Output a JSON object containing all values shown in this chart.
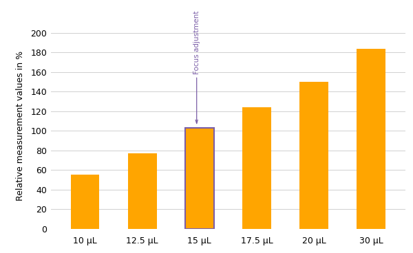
{
  "categories": [
    "10 μL",
    "12.5 μL",
    "15 μL",
    "17.5 μL",
    "20 μL",
    "30 μL"
  ],
  "values": [
    55,
    77,
    103,
    124,
    150,
    184
  ],
  "bar_color": "#FFA500",
  "highlight_index": 2,
  "highlight_color": "#7B5EA7",
  "annotation_text": "Focus adjustment",
  "annotation_color": "#7B5EA7",
  "ylabel": "Relative measurement values in %",
  "ylim": [
    0,
    210
  ],
  "yticks": [
    0,
    20,
    40,
    60,
    80,
    100,
    120,
    140,
    160,
    180,
    200
  ],
  "grid_color": "#d0d0d0",
  "bg_color": "#ffffff",
  "bar_width": 0.5
}
